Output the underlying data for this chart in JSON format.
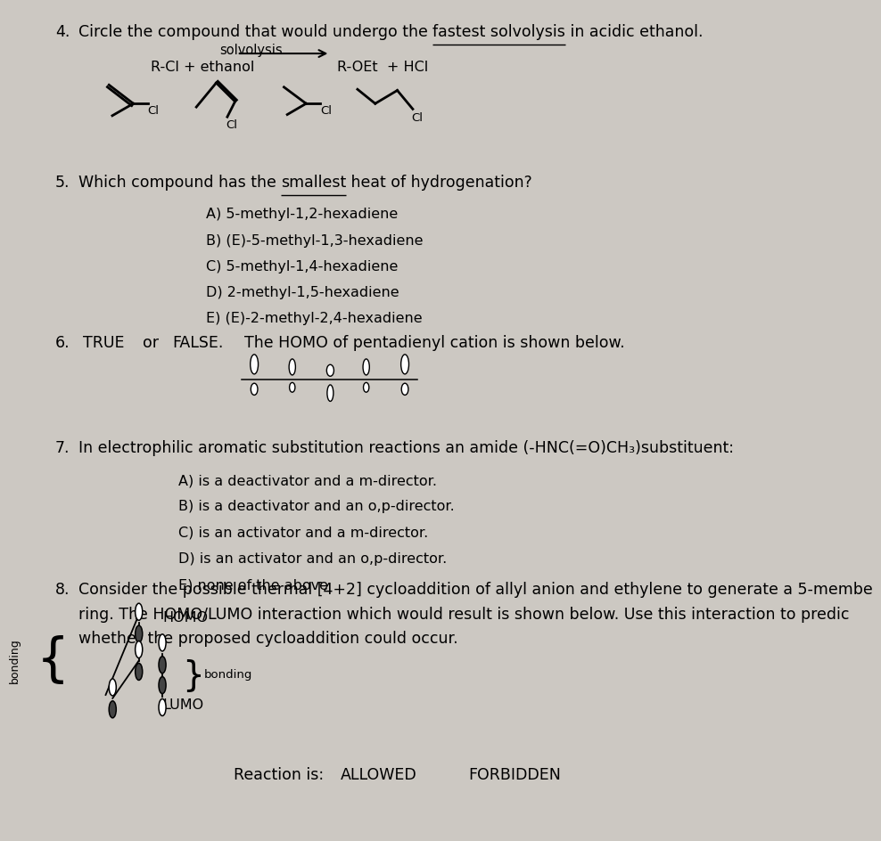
{
  "bg_color": "#ccc8c2",
  "text_color": "#000000",
  "q4_num": "4.",
  "q4_line1_pre": "Circle the compound that would undergo the ",
  "q4_line1_ul": "fastest solvolysis",
  "q4_line1_post": " in acidic ethanol.",
  "solvolysis_label": "solvolysis",
  "reactant_text": "R-Cl + ethanol",
  "product_text": "R-OEt  + HCl",
  "q5_num": "5.",
  "q5_pre": "Which compound has the ",
  "q5_ul": "smallest",
  "q5_post": " heat of hydrogenation?",
  "q5_options": [
    "A) 5-methyl-1,2-hexadiene",
    "B) (E)-5-methyl-1,3-hexadiene",
    "C) 5-methyl-1,4-hexadiene",
    "D) 2-methyl-1,5-hexadiene",
    "E) (E)-2-methyl-2,4-hexadiene"
  ],
  "q6_num": "6.",
  "q6_TRUE": "TRUE",
  "q6_or": "or",
  "q6_FALSE": "FALSE.",
  "q6_rest": "  The HOMO of pentadienyl cation is shown below.",
  "q7_num": "7.",
  "q7_text": "In electrophilic aromatic substitution reactions an amide (-HNC(=O)CH₃)substituent:",
  "q7_options": [
    "A) is a deactivator and a m-director.",
    "B) is a deactivator and an o,p-director.",
    "C) is an activator and a m-director.",
    "D) is an activator and an o,p-director.",
    "E) none of the above"
  ],
  "q8_num": "8.",
  "q8_line1": "Consider the possible thermal [4+2] cycloaddition of allyl anion and ethylene to generate a 5-membe",
  "q8_line2": "ring. The HOMO/LUMO interaction which would result is shown below. Use this interaction to predic",
  "q8_line3": "whether the proposed cycloaddition could occur.",
  "homo_label": "HOMO",
  "lumo_label": "LUMO",
  "bonding_left": "bonding",
  "bonding_right": "bonding",
  "reaction_label": "Reaction is:",
  "allowed_label": "ALLOWED",
  "forbidden_label": "FORBIDDEN"
}
